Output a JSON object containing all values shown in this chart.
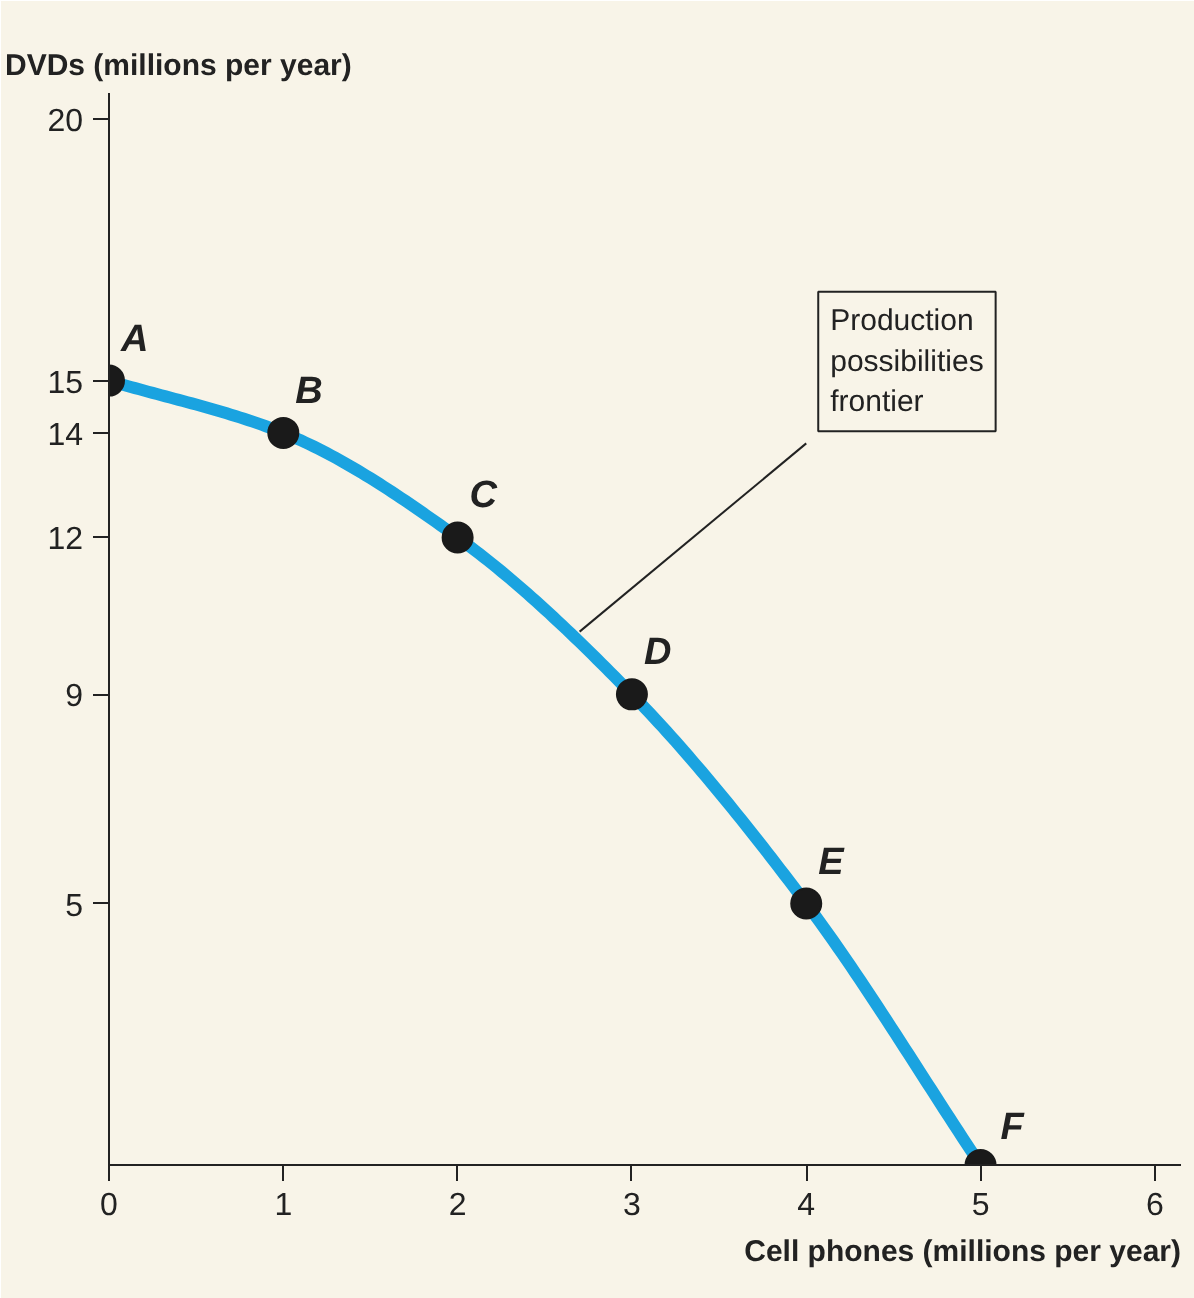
{
  "chart_data": {
    "type": "line",
    "xlabel": "Cell phones (millions per year)",
    "ylabel": "DVDs (millions per year)",
    "x": [
      0,
      1,
      2,
      3,
      4,
      5
    ],
    "series": [
      {
        "color": "#1aa3e0",
        "values": [
          15,
          14,
          12,
          9,
          5,
          0
        ]
      }
    ],
    "marker": "circle",
    "grid": false,
    "xlim": [
      0,
      6.15
    ],
    "ylim": [
      0,
      20.5
    ],
    "xticks": [
      0,
      1,
      2,
      3,
      4,
      5,
      6
    ],
    "yticks": [
      5,
      9,
      12,
      14,
      15,
      20
    ],
    "annotations": [
      {
        "text": "A",
        "x": 0,
        "y": 15
      },
      {
        "text": "B",
        "x": 1,
        "y": 14
      },
      {
        "text": "C",
        "x": 2,
        "y": 12
      },
      {
        "text": "D",
        "x": 3,
        "y": 9
      },
      {
        "text": "E",
        "x": 4,
        "y": 5
      },
      {
        "text": "F",
        "x": 5,
        "y": 0
      },
      {
        "text": "Production\npossibilities\nfrontier",
        "x": 2.7,
        "y": 10.2
      }
    ]
  }
}
